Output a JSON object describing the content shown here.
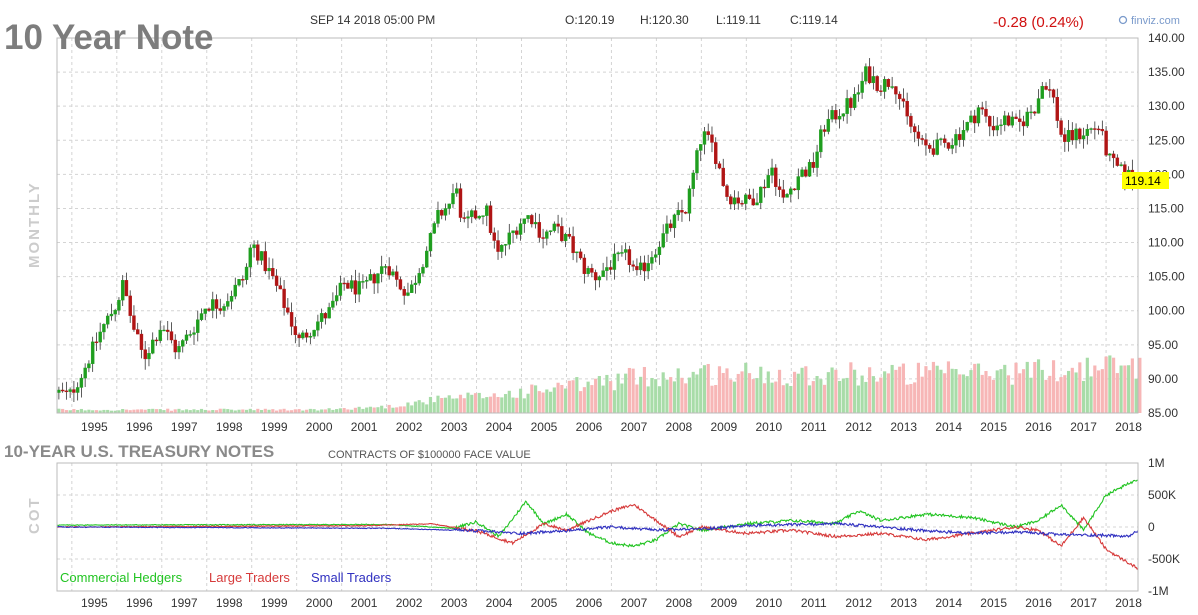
{
  "header": {
    "title": "10 Year Note",
    "date": "SEP 14 2018 05:00 PM",
    "open": "O:120.19",
    "high": "H:120.30",
    "low": "L:119.11",
    "close": "C:119.14",
    "change": "-0.28 (0.24%)",
    "brand": "finviz.com"
  },
  "colors": {
    "up": "#1f9e1f",
    "down": "#b01515",
    "vol_up": "#a8dca8",
    "vol_down": "#f7b6b6",
    "grid": "#d4d4d4",
    "commercial": "#22c422",
    "large": "#d63a3a",
    "small": "#3030c0",
    "change": "#d01010",
    "price_tag": "#ffff00"
  },
  "chart_data": [
    {
      "type": "candlestick",
      "name": "price",
      "interval_label": "MONTHLY",
      "last_price_label": "119.14",
      "x_labels": [
        "1995",
        "1996",
        "1997",
        "1998",
        "1999",
        "2000",
        "2001",
        "2002",
        "2003",
        "2004",
        "2005",
        "2006",
        "2007",
        "2008",
        "2009",
        "2010",
        "2011",
        "2012",
        "2013",
        "2014",
        "2015",
        "2016",
        "2017",
        "2018"
      ],
      "ylim": [
        85,
        140
      ],
      "y_ticks": [
        "85.00",
        "90.00",
        "95.00",
        "100.00",
        "105.00",
        "110.00",
        "115.00",
        "120.00",
        "125.00",
        "130.00",
        "135.00",
        "140.00"
      ],
      "x_start": 1994.67,
      "x_end": 2018.71,
      "anchors": [
        [
          1994.67,
          88
        ],
        [
          1994.9,
          87.5
        ],
        [
          1995.2,
          91
        ],
        [
          1995.6,
          97
        ],
        [
          1995.95,
          101
        ],
        [
          1996.1,
          104
        ],
        [
          1996.3,
          98
        ],
        [
          1996.55,
          93
        ],
        [
          1996.95,
          98
        ],
        [
          1997.3,
          94
        ],
        [
          1997.7,
          98
        ],
        [
          1997.95,
          101
        ],
        [
          1998.3,
          101
        ],
        [
          1998.8,
          105
        ],
        [
          1998.95,
          110
        ],
        [
          1999.4,
          105
        ],
        [
          1999.8,
          99
        ],
        [
          2000.0,
          95.5
        ],
        [
          2000.35,
          98
        ],
        [
          2000.7,
          100
        ],
        [
          2001.0,
          104
        ],
        [
          2001.4,
          103
        ],
        [
          2001.95,
          107
        ],
        [
          2002.2,
          104
        ],
        [
          2002.45,
          102.5
        ],
        [
          2002.9,
          110
        ],
        [
          2003.1,
          114
        ],
        [
          2003.4,
          116
        ],
        [
          2003.5,
          119
        ],
        [
          2003.6,
          112
        ],
        [
          2003.9,
          114
        ],
        [
          2004.15,
          115
        ],
        [
          2004.4,
          108
        ],
        [
          2004.9,
          113
        ],
        [
          2005.15,
          114
        ],
        [
          2005.4,
          111
        ],
        [
          2005.7,
          112
        ],
        [
          2006.0,
          110
        ],
        [
          2006.35,
          106
        ],
        [
          2006.6,
          105
        ],
        [
          2006.95,
          107
        ],
        [
          2007.3,
          108
        ],
        [
          2007.5,
          105
        ],
        [
          2007.9,
          109
        ],
        [
          2008.3,
          113
        ],
        [
          2008.6,
          115
        ],
        [
          2008.95,
          126
        ],
        [
          2009.2,
          124
        ],
        [
          2009.5,
          117
        ],
        [
          2009.9,
          116
        ],
        [
          2010.2,
          117
        ],
        [
          2010.5,
          121
        ],
        [
          2010.75,
          116
        ],
        [
          2011.1,
          120
        ],
        [
          2011.4,
          121
        ],
        [
          2011.65,
          127
        ],
        [
          2011.95,
          129
        ],
        [
          2012.35,
          131
        ],
        [
          2012.6,
          135
        ],
        [
          2012.9,
          133
        ],
        [
          2013.2,
          134
        ],
        [
          2013.5,
          128
        ],
        [
          2013.85,
          124
        ],
        [
          2014.2,
          124
        ],
        [
          2014.5,
          125
        ],
        [
          2014.95,
          128
        ],
        [
          2015.1,
          130
        ],
        [
          2015.35,
          127
        ],
        [
          2015.7,
          128
        ],
        [
          2015.95,
          127
        ],
        [
          2016.35,
          130
        ],
        [
          2016.55,
          134
        ],
        [
          2016.75,
          131
        ],
        [
          2016.95,
          125
        ],
        [
          2017.35,
          126
        ],
        [
          2017.75,
          127
        ],
        [
          2018.0,
          122
        ],
        [
          2018.3,
          120
        ],
        [
          2018.71,
          119.5
        ]
      ],
      "volume_anchors": [
        [
          1994.67,
          0.05
        ],
        [
          2000.5,
          0.05
        ],
        [
          2002.0,
          0.1
        ],
        [
          2003.0,
          0.2
        ],
        [
          2004.5,
          0.28
        ],
        [
          2006.0,
          0.4
        ],
        [
          2007.5,
          0.55
        ],
        [
          2009.0,
          0.6
        ],
        [
          2010.5,
          0.6
        ],
        [
          2012.0,
          0.6
        ],
        [
          2014.0,
          0.6
        ],
        [
          2016.0,
          0.63
        ],
        [
          2018.5,
          0.72
        ]
      ]
    },
    {
      "type": "line",
      "name": "cot",
      "section_title": "10-YEAR U.S. TREASURY NOTES",
      "section_subtitle": "CONTRACTS OF $100000 FACE VALUE",
      "panel_label": "COT",
      "ylim": [
        -1000000,
        1000000
      ],
      "y_ticks": [
        "1M",
        "500K",
        "0",
        "-500K",
        "-1M"
      ],
      "series": [
        {
          "name": "Commercial Hedgers",
          "color": "#22c422",
          "anchors": [
            [
              1994.67,
              30000
            ],
            [
              2002.0,
              40000
            ],
            [
              2003.5,
              -20000
            ],
            [
              2004.0,
              80000
            ],
            [
              2004.5,
              -150000
            ],
            [
              2005.1,
              400000
            ],
            [
              2005.5,
              50000
            ],
            [
              2006.0,
              200000
            ],
            [
              2006.5,
              -100000
            ],
            [
              2007.0,
              -250000
            ],
            [
              2007.5,
              -300000
            ],
            [
              2008.0,
              -200000
            ],
            [
              2008.5,
              50000
            ],
            [
              2009.0,
              -50000
            ],
            [
              2010.0,
              50000
            ],
            [
              2011.0,
              100000
            ],
            [
              2012.0,
              60000
            ],
            [
              2012.5,
              250000
            ],
            [
              2013.0,
              100000
            ],
            [
              2014.0,
              200000
            ],
            [
              2015.0,
              150000
            ],
            [
              2016.0,
              0
            ],
            [
              2016.5,
              100000
            ],
            [
              2017.0,
              350000
            ],
            [
              2017.5,
              -50000
            ],
            [
              2018.0,
              500000
            ],
            [
              2018.71,
              750000
            ]
          ]
        },
        {
          "name": "Large Traders",
          "color": "#d63a3a",
          "anchors": [
            [
              1994.67,
              0
            ],
            [
              2001.5,
              20000
            ],
            [
              2003.0,
              50000
            ],
            [
              2004.0,
              -60000
            ],
            [
              2004.8,
              -250000
            ],
            [
              2005.5,
              50000
            ],
            [
              2006.0,
              -50000
            ],
            [
              2006.5,
              100000
            ],
            [
              2007.0,
              250000
            ],
            [
              2007.5,
              350000
            ],
            [
              2008.0,
              100000
            ],
            [
              2008.5,
              -150000
            ],
            [
              2009.0,
              0
            ],
            [
              2010.0,
              -100000
            ],
            [
              2011.0,
              -50000
            ],
            [
              2012.0,
              -150000
            ],
            [
              2013.0,
              -100000
            ],
            [
              2014.0,
              -200000
            ],
            [
              2015.0,
              -100000
            ],
            [
              2016.0,
              0
            ],
            [
              2016.5,
              -50000
            ],
            [
              2017.0,
              -300000
            ],
            [
              2017.5,
              150000
            ],
            [
              2018.0,
              -350000
            ],
            [
              2018.71,
              -650000
            ]
          ]
        },
        {
          "name": "Small Traders",
          "color": "#3030c0",
          "anchors": [
            [
              1994.67,
              0
            ],
            [
              2002.0,
              -20000
            ],
            [
              2004.0,
              -60000
            ],
            [
              2005.0,
              -100000
            ],
            [
              2006.0,
              -60000
            ],
            [
              2007.0,
              0
            ],
            [
              2008.0,
              -50000
            ],
            [
              2009.0,
              -30000
            ],
            [
              2010.0,
              20000
            ],
            [
              2012.0,
              50000
            ],
            [
              2013.0,
              0
            ],
            [
              2014.0,
              -60000
            ],
            [
              2015.0,
              -100000
            ],
            [
              2016.0,
              -80000
            ],
            [
              2017.0,
              -120000
            ],
            [
              2018.0,
              -130000
            ],
            [
              2018.5,
              -150000
            ],
            [
              2018.71,
              -50000
            ]
          ]
        }
      ]
    }
  ]
}
